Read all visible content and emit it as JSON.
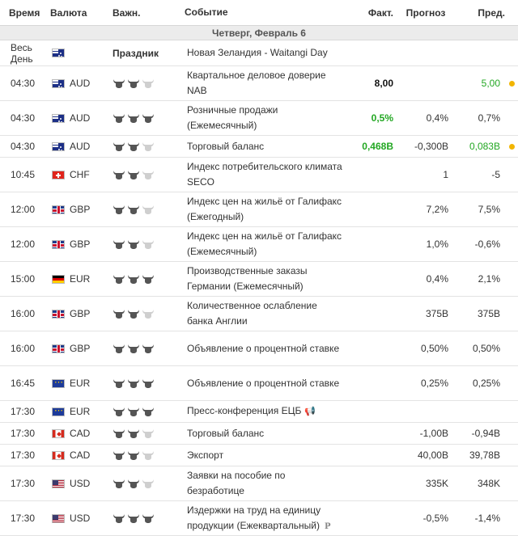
{
  "header": {
    "time": "Время",
    "currency": "Валюта",
    "importance": "Важн.",
    "event": "Событие",
    "actual": "Факт.",
    "forecast": "Прогноз",
    "previous": "Пред."
  },
  "day_label": "Четверг, Февраль 6",
  "colors": {
    "positive": "#22a722",
    "alert_dot": "#f2b500",
    "day_bar": "#ececec",
    "bull_on": "#555555",
    "bull_off": "#cfcfcf"
  },
  "rows": [
    {
      "time": "Весь День",
      "currency": "",
      "flag": "au",
      "importance": 0,
      "holiday": "Праздник",
      "event": "Новая Зеландия - Waitangi Day",
      "actual": "",
      "forecast": "",
      "previous": "",
      "dot": false
    },
    {
      "time": "04:30",
      "currency": "AUD",
      "flag": "au",
      "importance": 2,
      "event": "Квартальное деловое доверие NAB",
      "actual": "8,00",
      "actual_style": "bold",
      "forecast": "",
      "previous": "5,00",
      "previous_style": "green-reg",
      "dot": true
    },
    {
      "time": "04:30",
      "currency": "AUD",
      "flag": "au",
      "importance": 3,
      "event": "Розничные продажи (Ежемесячный)",
      "actual": "0,5%",
      "actual_style": "green",
      "forecast": "0,4%",
      "previous": "0,7%",
      "dot": false
    },
    {
      "time": "04:30",
      "currency": "AUD",
      "flag": "au",
      "importance": 2,
      "event": "Торговый баланс",
      "actual": "0,468B",
      "actual_style": "green",
      "forecast": "-0,300B",
      "previous": "0,083B",
      "previous_style": "green-reg",
      "dot": true
    },
    {
      "time": "10:45",
      "currency": "CHF",
      "flag": "ch",
      "importance": 2,
      "event": "Индекс потребительского климата SECO",
      "actual": "",
      "forecast": "1",
      "previous": "-5",
      "dot": false
    },
    {
      "time": "12:00",
      "currency": "GBP",
      "flag": "gb",
      "importance": 2,
      "event": "Индекс цен на жильё от Галифакс (Ежегодный)",
      "actual": "",
      "forecast": "7,2%",
      "previous": "7,5%",
      "dot": false
    },
    {
      "time": "12:00",
      "currency": "GBP",
      "flag": "gb",
      "importance": 2,
      "event": "Индекс цен на жильё от Галифакс (Ежемесячный)",
      "actual": "",
      "forecast": "1,0%",
      "previous": "-0,6%",
      "dot": false
    },
    {
      "time": "15:00",
      "currency": "EUR",
      "flag": "de",
      "importance": 3,
      "event": "Производственные заказы Германии (Ежемесячный)",
      "actual": "",
      "forecast": "0,4%",
      "previous": "2,1%",
      "dot": false
    },
    {
      "time": "16:00",
      "currency": "GBP",
      "flag": "gb",
      "importance": 2,
      "event": "Количественное ослабление банка Англии",
      "actual": "",
      "forecast": "375B",
      "previous": "375B",
      "dot": false
    },
    {
      "time": "16:00",
      "currency": "GBP",
      "flag": "gb",
      "importance": 3,
      "event": "Объявление о процентной ставке",
      "actual": "",
      "forecast": "0,50%",
      "previous": "0,50%",
      "dot": false
    },
    {
      "time": "16:45",
      "currency": "EUR",
      "flag": "eu",
      "importance": 3,
      "event": "Объявление о процентной ставке",
      "actual": "",
      "forecast": "0,25%",
      "previous": "0,25%",
      "dot": false
    },
    {
      "time": "17:30",
      "currency": "EUR",
      "flag": "eu",
      "importance": 3,
      "event": "Пресс-конференция ЕЦБ",
      "speaker": true,
      "actual": "",
      "forecast": "",
      "previous": "",
      "dot": false
    },
    {
      "time": "17:30",
      "currency": "CAD",
      "flag": "ca",
      "importance": 2,
      "event": "Торговый баланс",
      "actual": "",
      "forecast": "-1,00B",
      "previous": "-0,94B",
      "dot": false
    },
    {
      "time": "17:30",
      "currency": "CAD",
      "flag": "ca",
      "importance": 2,
      "event": "Экспорт",
      "actual": "",
      "forecast": "40,00B",
      "previous": "39,78B",
      "dot": false
    },
    {
      "time": "17:30",
      "currency": "USD",
      "flag": "us",
      "importance": 2,
      "event": "Заявки на пособие по безработице",
      "actual": "",
      "forecast": "335K",
      "previous": "348K",
      "dot": false
    },
    {
      "time": "17:30",
      "currency": "USD",
      "flag": "us",
      "importance": 3,
      "event": "Издержки на труд на единицу продукции (Ежеквартальный)",
      "preliminary": "P",
      "actual": "",
      "forecast": "-0,5%",
      "previous": "-1,4%",
      "dot": false
    }
  ]
}
